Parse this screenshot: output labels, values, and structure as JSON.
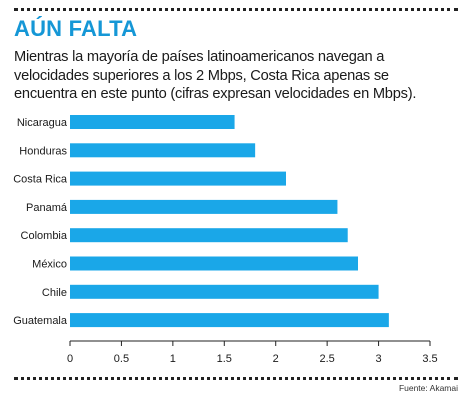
{
  "header": {
    "title": "AÚN FALTA",
    "subtitle": "Mientras la mayoría de países latinoamericanos navegan a velocidades superiores a los 2 Mbps, Costa Rica apenas se encuentra en este punto (cifras expresan velocidades en Mbps)."
  },
  "colors": {
    "title": "#1597d6",
    "bar": "#1aa7e8",
    "axis": "#222222"
  },
  "chart_data": {
    "type": "bar",
    "orientation": "horizontal",
    "categories": [
      "Nicaragua",
      "Honduras",
      "Costa Rica",
      "Panamá",
      "Colombia",
      "México",
      "Chile",
      "Guatemala"
    ],
    "values": [
      1.6,
      1.8,
      2.1,
      2.6,
      2.7,
      2.8,
      3.0,
      3.1
    ],
    "xlim": [
      0,
      3.5
    ],
    "xticks": [
      "0",
      "0.5",
      "1",
      "1.5",
      "2",
      "2.5",
      "3",
      "3.5"
    ],
    "grid": false
  },
  "footer": {
    "source": "Fuente: Akamai"
  }
}
